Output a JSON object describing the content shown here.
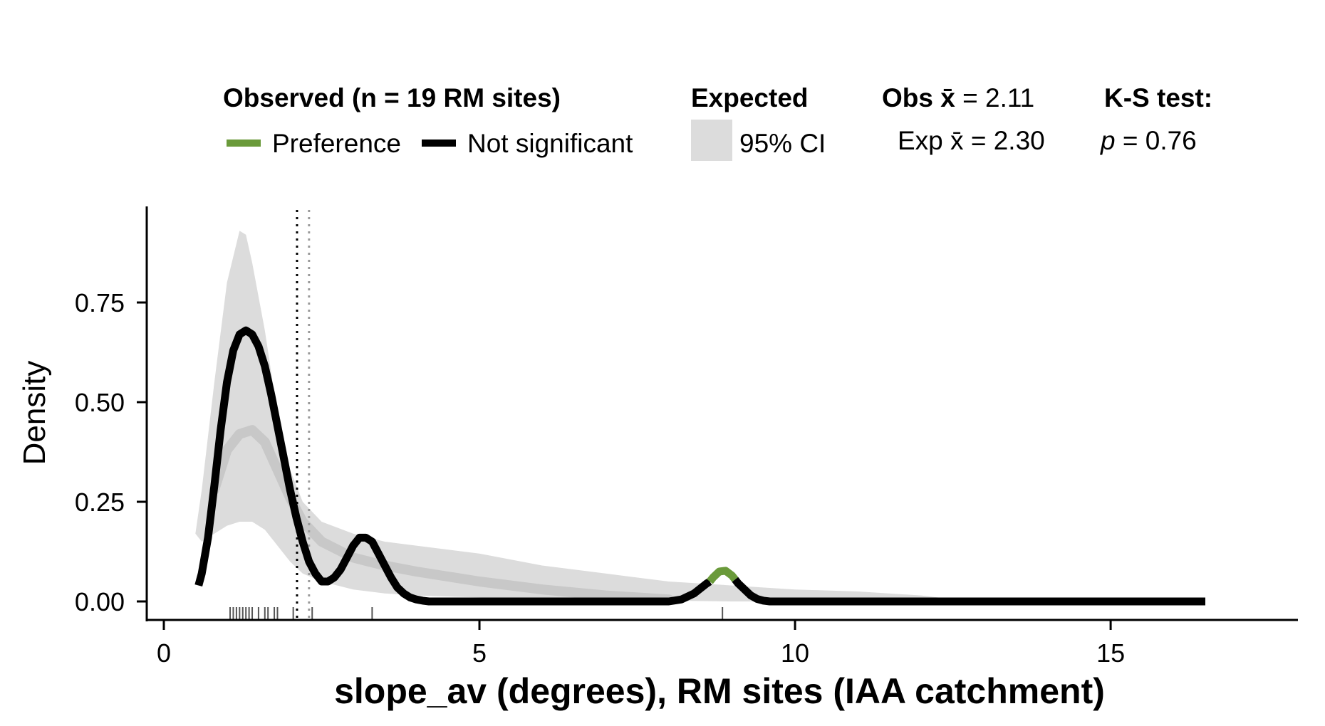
{
  "legend": {
    "observed_title": "Observed (n = 19 RM sites)",
    "preference_label": "Preference",
    "not_significant_label": "Not significant",
    "expected_title": "Expected",
    "ci_label": "95% CI",
    "obs_mean_prefix": "Obs",
    "obs_mean_value": " = 2.11",
    "exp_mean_prefix": "Exp",
    "exp_mean_value": " = 2.30",
    "ks_title": "K-S test:",
    "ks_p_symbol": "p",
    "ks_p_value": " = 0.76",
    "xbar_symbol": "x̄"
  },
  "chart_data": {
    "type": "area",
    "xlabel": "slope_av (degrees), RM sites (IAA catchment)",
    "ylabel": "Density",
    "xlim": [
      0,
      17
    ],
    "ylim": [
      0,
      0.93
    ],
    "x_ticks": [
      0,
      5,
      10,
      15
    ],
    "x_tick_labels": [
      "0",
      "5",
      "10",
      "15"
    ],
    "y_ticks": [
      0,
      0.25,
      0.5,
      0.75
    ],
    "y_tick_labels": [
      "0.00",
      "0.25",
      "0.50",
      "0.75"
    ],
    "colors": {
      "preference": "#6a9a3a",
      "not_significant": "#000000",
      "ci_band": "#dcdcdc",
      "expected_mean_line": "#c8c8c8",
      "obs_mean_vline": "#000000",
      "exp_mean_vline": "#9a9a9a"
    },
    "obs_mean": 2.11,
    "exp_mean": 2.3,
    "ci_band": {
      "x": [
        0.5,
        0.6,
        0.8,
        1.0,
        1.2,
        1.3,
        1.4,
        1.6,
        1.8,
        2.0,
        2.2,
        2.5,
        3.0,
        3.5,
        4.0,
        5.0,
        6.0,
        7.0,
        8.0,
        9.0,
        10.0,
        11.0,
        12.0,
        12.8
      ],
      "upper": [
        0.17,
        0.28,
        0.55,
        0.8,
        0.93,
        0.92,
        0.85,
        0.68,
        0.47,
        0.33,
        0.25,
        0.2,
        0.17,
        0.15,
        0.14,
        0.12,
        0.09,
        0.07,
        0.05,
        0.04,
        0.03,
        0.025,
        0.015,
        0.0
      ],
      "lower": [
        0.17,
        0.15,
        0.17,
        0.19,
        0.2,
        0.2,
        0.2,
        0.18,
        0.14,
        0.1,
        0.07,
        0.05,
        0.03,
        0.02,
        0.015,
        0.01,
        0.005,
        0.003,
        0.002,
        0.0,
        0.0,
        0.0,
        0.0,
        0.0
      ]
    },
    "expected_mean": {
      "x": [
        0.8,
        1.0,
        1.2,
        1.4,
        1.6,
        1.8,
        2.0,
        2.2,
        2.5,
        3.0,
        3.5,
        4.0,
        5.0,
        6.0,
        7.0,
        8.0
      ],
      "y": [
        0.28,
        0.38,
        0.42,
        0.43,
        0.4,
        0.33,
        0.26,
        0.2,
        0.15,
        0.11,
        0.09,
        0.075,
        0.05,
        0.03,
        0.015,
        0.005
      ]
    },
    "series": [
      {
        "name": "Not significant",
        "x": [
          0.55,
          0.6,
          0.7,
          0.8,
          0.9,
          1.0,
          1.1,
          1.2,
          1.3,
          1.4,
          1.5,
          1.6,
          1.7,
          1.8,
          1.9,
          2.0,
          2.1,
          2.2,
          2.3,
          2.4,
          2.5,
          2.6,
          2.7,
          2.8,
          2.9,
          3.0,
          3.1,
          3.2,
          3.3,
          3.4,
          3.5,
          3.6,
          3.7,
          3.8,
          3.9,
          4.0,
          4.1,
          4.2,
          5.0,
          6.0,
          7.0,
          8.0,
          8.2,
          8.4,
          8.6,
          8.65
        ],
        "y": [
          0.04,
          0.07,
          0.16,
          0.29,
          0.43,
          0.55,
          0.63,
          0.67,
          0.68,
          0.67,
          0.64,
          0.59,
          0.52,
          0.44,
          0.36,
          0.28,
          0.21,
          0.15,
          0.1,
          0.07,
          0.05,
          0.05,
          0.06,
          0.08,
          0.11,
          0.14,
          0.16,
          0.16,
          0.15,
          0.12,
          0.09,
          0.06,
          0.035,
          0.02,
          0.01,
          0.005,
          0.002,
          0.0,
          0.0,
          0.0,
          0.0,
          0.0,
          0.005,
          0.02,
          0.045,
          0.05
        ]
      },
      {
        "name": "Preference",
        "x": [
          8.65,
          8.7,
          8.8,
          8.9,
          9.0,
          9.05
        ],
        "y": [
          0.05,
          0.06,
          0.075,
          0.077,
          0.065,
          0.055
        ]
      },
      {
        "name": "Not significant",
        "x": [
          9.05,
          9.1,
          9.2,
          9.3,
          9.4,
          9.5,
          9.6,
          10.0,
          12.0,
          14.0,
          16.5
        ],
        "y": [
          0.055,
          0.045,
          0.03,
          0.015,
          0.006,
          0.002,
          0.0,
          0.0,
          0.0,
          0.0,
          0.0
        ]
      }
    ],
    "rug": [
      1.05,
      1.1,
      1.15,
      1.2,
      1.25,
      1.3,
      1.35,
      1.4,
      1.5,
      1.6,
      1.65,
      1.75,
      1.8,
      2.05,
      2.35,
      3.3,
      8.85
    ]
  }
}
